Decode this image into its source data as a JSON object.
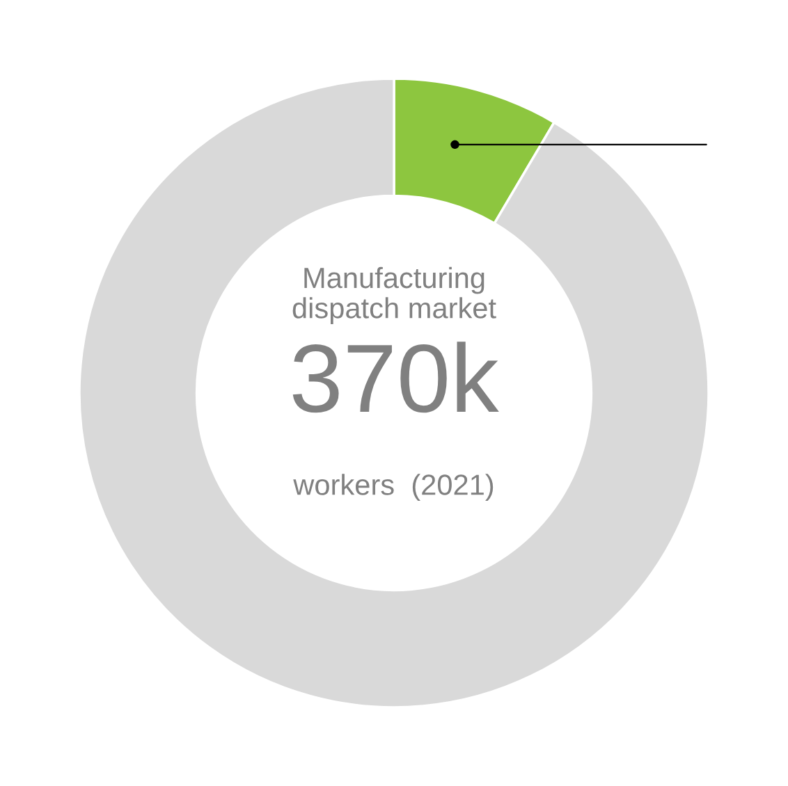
{
  "chart_data": {
    "type": "donut",
    "categories": [
      null,
      null
    ],
    "values": [
      8.5,
      91.5
    ],
    "colors": [
      "#8dc63f",
      "#d9d9d9"
    ],
    "annotations": [
      "Manufacturing\ndispatch market",
      "370k",
      "workers  (2021)"
    ]
  }
}
